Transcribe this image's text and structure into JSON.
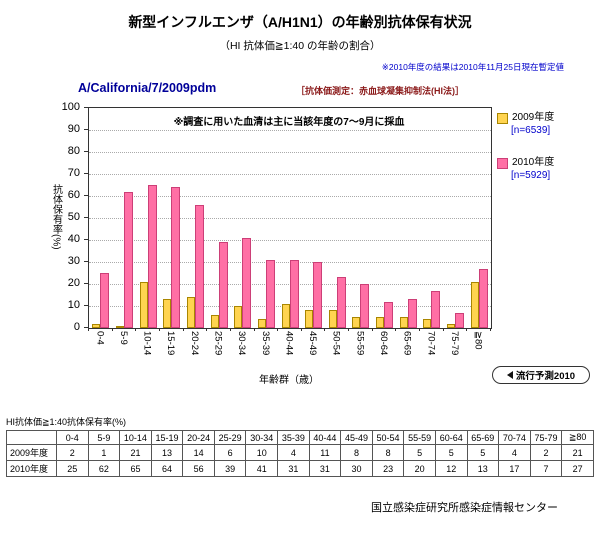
{
  "page": {
    "title": "新型インフルエンザ（A/H1N1）の年齢別抗体保有状況",
    "subtitle": "（HI 抗体価≧1:40 の年齢の割合）",
    "provisional_note": "※2010年度の結果は2010年11月25日現在暫定値",
    "footer": "国立感染症研究所感染症情報センター"
  },
  "chart_data": {
    "type": "bar",
    "title": "A/California/7/2009pdm",
    "method_label": "［抗体価測定：赤血球凝集抑制法(HI法)］",
    "annotation": "※調査に用いた血清は主に当該年度の7～9月に採血",
    "forecast_label": "流行予測2010",
    "xlabel": "年齢群（歳）",
    "ylabel": "抗体保有率(%)",
    "ylim": [
      0,
      100
    ],
    "ytick_step": 10,
    "grid": true,
    "legend_position": "right",
    "categories": [
      "0-4",
      "5-9",
      "10-14",
      "15-19",
      "20-24",
      "25-29",
      "30-34",
      "35-39",
      "40-44",
      "45-49",
      "50-54",
      "55-59",
      "60-64",
      "65-69",
      "70-74",
      "75-79",
      "≧80"
    ],
    "series": [
      {
        "name": "2009年度",
        "n": "[n=6539]",
        "color": "#ffd450",
        "border": "#a98600",
        "values": [
          2,
          1,
          21,
          13,
          14,
          6,
          10,
          4,
          11,
          8,
          8,
          5,
          5,
          5,
          4,
          2,
          21
        ]
      },
      {
        "name": "2010年度",
        "n": "[n=5929]",
        "color": "#ff6fa5",
        "border": "#cc3f77",
        "values": [
          25,
          62,
          65,
          64,
          56,
          39,
          41,
          31,
          31,
          30,
          23,
          20,
          12,
          13,
          17,
          7,
          27
        ]
      }
    ]
  },
  "table": {
    "caption": "HI抗体価≧1:40抗体保有率(%)",
    "col_headers": [
      "0-4",
      "5-9",
      "10-14",
      "15-19",
      "20-24",
      "25-29",
      "30-34",
      "35-39",
      "40-44",
      "45-49",
      "50-54",
      "55-59",
      "60-64",
      "65-69",
      "70-74",
      "75-79",
      "≧80"
    ],
    "rows": [
      {
        "label": "2009年度",
        "values": [
          2,
          1,
          21,
          13,
          14,
          6,
          10,
          4,
          11,
          8,
          8,
          5,
          5,
          5,
          4,
          2,
          21
        ]
      },
      {
        "label": "2010年度",
        "values": [
          25,
          62,
          65,
          64,
          56,
          39,
          41,
          31,
          31,
          30,
          23,
          20,
          12,
          13,
          17,
          7,
          27
        ]
      }
    ]
  }
}
